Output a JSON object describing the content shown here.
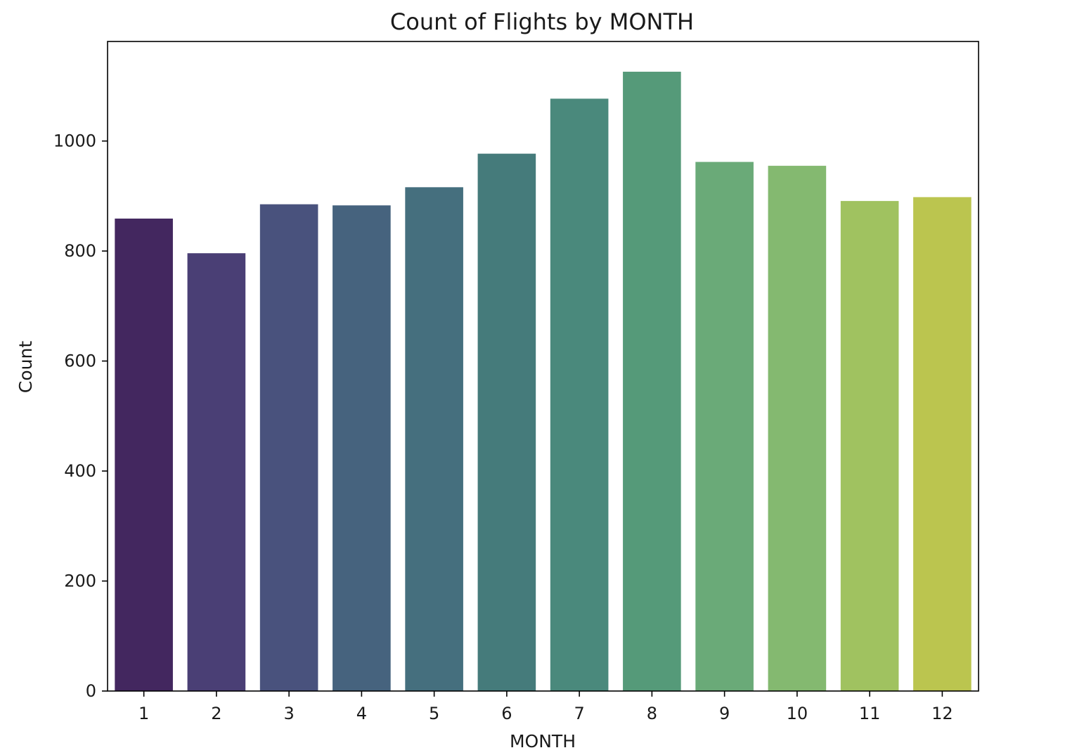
{
  "chart_data": {
    "type": "bar",
    "title": "Count of Flights by MONTH",
    "xlabel": "MONTH",
    "ylabel": "Count",
    "categories": [
      "1",
      "2",
      "3",
      "4",
      "5",
      "6",
      "7",
      "8",
      "9",
      "10",
      "11",
      "12"
    ],
    "values": [
      859,
      796,
      885,
      883,
      916,
      977,
      1077,
      1126,
      962,
      955,
      891,
      898
    ],
    "ylim": [
      0,
      1181
    ],
    "yticks": [
      0,
      200,
      400,
      600,
      800,
      1000
    ],
    "ytick_labels": [
      "0",
      "200",
      "400",
      "600",
      "800",
      "1000"
    ],
    "colors": [
      "#43275f",
      "#4a3f75",
      "#49527d",
      "#46637e",
      "#456f7e",
      "#457b7b",
      "#4a897c",
      "#559a79",
      "#6aaa78",
      "#84b970",
      "#a0c260",
      "#bbc54f"
    ],
    "grid": false,
    "legend": "none"
  }
}
